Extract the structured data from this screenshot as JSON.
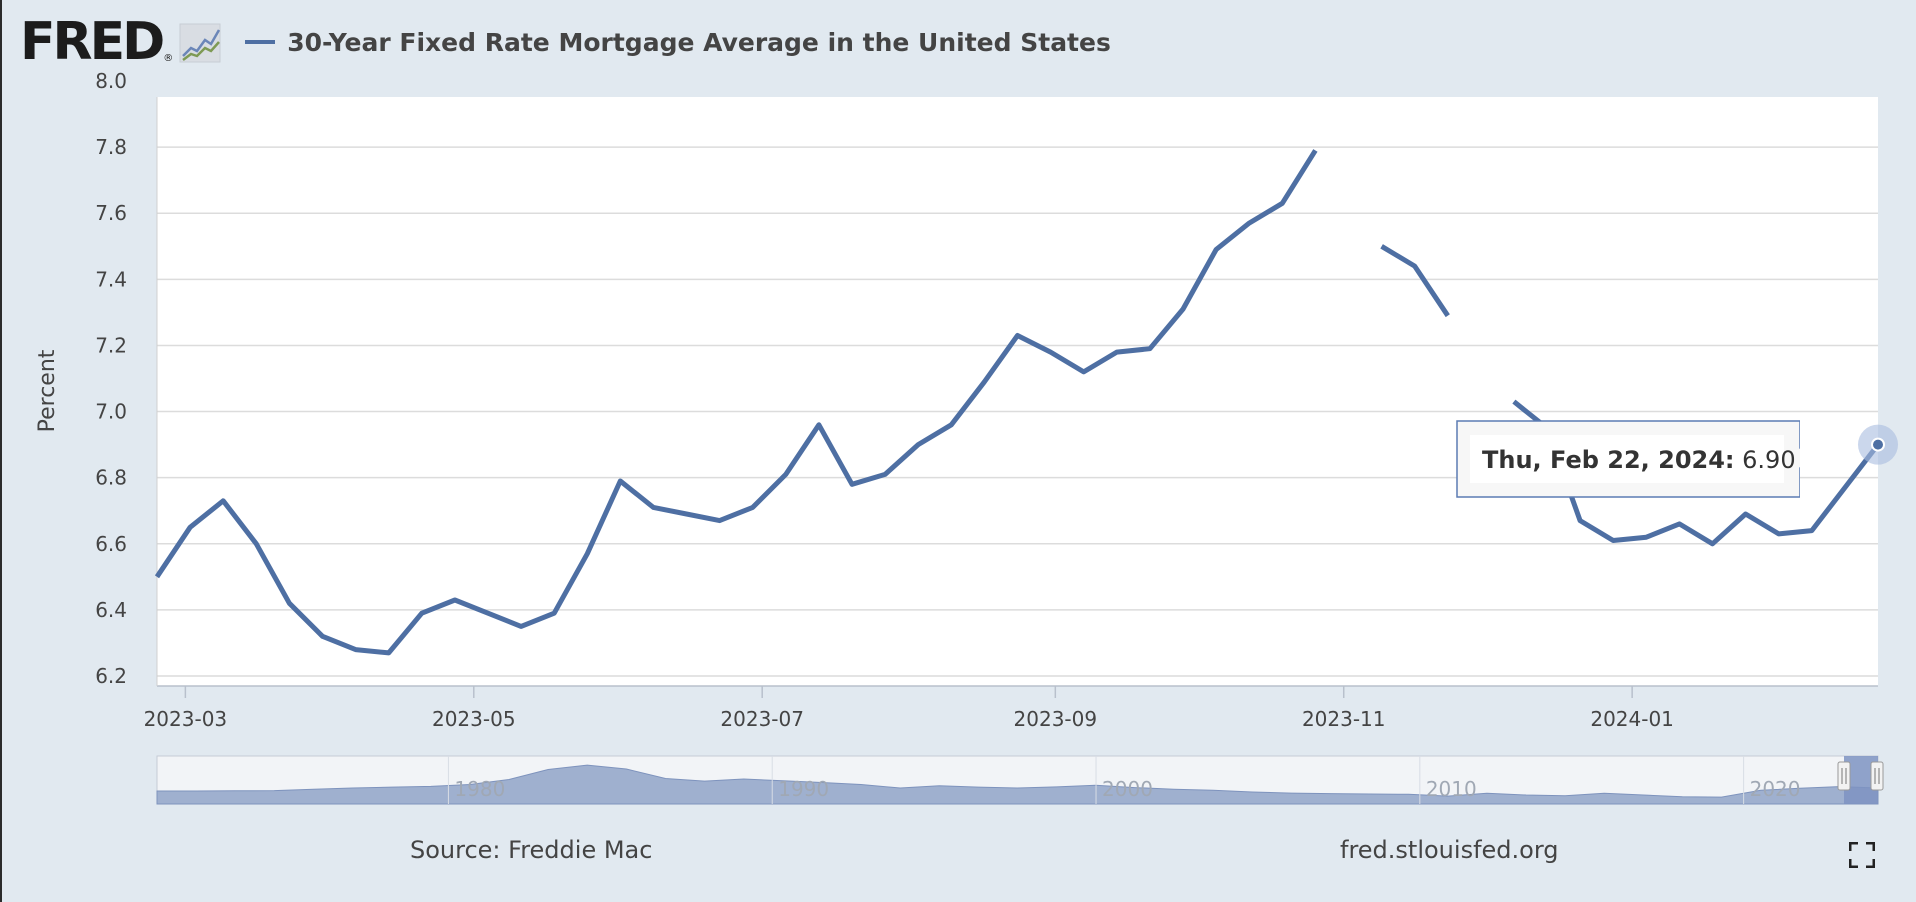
{
  "header": {
    "logo_text": "FRED",
    "logo_reg": "®",
    "title": "30-Year Fixed Rate Mortgage Average in the United States"
  },
  "colors": {
    "series": "#4e6fa3",
    "background": "#e1e9f0",
    "plot": "#ffffff",
    "grid": "#dcdcdc",
    "navigator_fill": "#9fb0cf"
  },
  "chart_data": {
    "type": "line",
    "ylabel": "Percent",
    "ylim": [
      6.2,
      8.0
    ],
    "yticks": [
      "6.2",
      "6.4",
      "6.6",
      "6.8",
      "7.0",
      "7.2",
      "7.4",
      "7.6",
      "7.8",
      "8.0"
    ],
    "xlim": [
      "2023-02-23",
      "2024-02-22"
    ],
    "xticks": [
      {
        "date": "2023-03-01",
        "label": "2023-03"
      },
      {
        "date": "2023-05-01",
        "label": "2023-05"
      },
      {
        "date": "2023-07-01",
        "label": "2023-07"
      },
      {
        "date": "2023-09-01",
        "label": "2023-09"
      },
      {
        "date": "2023-11-01",
        "label": "2023-11"
      },
      {
        "date": "2024-01-01",
        "label": "2024-01"
      }
    ],
    "grid": true,
    "series": [
      {
        "name": "30-Year Fixed Rate Mortgage Average in the United States",
        "x": [
          "2023-02-23",
          "2023-03-02",
          "2023-03-09",
          "2023-03-16",
          "2023-03-23",
          "2023-03-30",
          "2023-04-06",
          "2023-04-13",
          "2023-04-20",
          "2023-04-27",
          "2023-05-04",
          "2023-05-11",
          "2023-05-18",
          "2023-05-25",
          "2023-06-01",
          "2023-06-08",
          "2023-06-15",
          "2023-06-22",
          "2023-06-29",
          "2023-07-06",
          "2023-07-13",
          "2023-07-20",
          "2023-07-27",
          "2023-08-03",
          "2023-08-10",
          "2023-08-17",
          "2023-08-24",
          "2023-08-31",
          "2023-09-07",
          "2023-09-14",
          "2023-09-21",
          "2023-09-28",
          "2023-10-05",
          "2023-10-12",
          "2023-10-19",
          "2023-10-26",
          "2023-11-02",
          "2023-11-09",
          "2023-11-16",
          "2023-11-23",
          "2023-11-30",
          "2023-12-07",
          "2023-12-14",
          "2023-12-21",
          "2023-12-28",
          "2024-01-04",
          "2024-01-11",
          "2024-01-18",
          "2024-01-25",
          "2024-02-01",
          "2024-02-08",
          "2024-02-15",
          "2024-02-22"
        ],
        "y": [
          6.5,
          6.65,
          6.73,
          6.6,
          6.42,
          6.32,
          6.28,
          6.27,
          6.39,
          6.43,
          6.39,
          6.35,
          6.39,
          6.57,
          6.79,
          6.71,
          6.69,
          6.67,
          6.71,
          6.81,
          6.96,
          6.78,
          6.81,
          6.9,
          6.96,
          7.09,
          7.23,
          7.18,
          7.12,
          7.18,
          7.19,
          7.31,
          7.49,
          7.57,
          7.63,
          7.79,
          null,
          7.5,
          7.44,
          7.29,
          null,
          7.03,
          6.95,
          6.67,
          6.61,
          6.62,
          6.66,
          6.6,
          6.69,
          6.63,
          6.64,
          6.77,
          6.9
        ]
      }
    ]
  },
  "navigator": {
    "labels": [
      "1980",
      "1990",
      "2000",
      "2010",
      "2020"
    ]
  },
  "tooltip": {
    "date": "Thu, Feb 22, 2024:",
    "value": "6.90"
  },
  "footer": {
    "source": "Source: Freddie Mac",
    "url": "fred.stlouisfed.org"
  }
}
